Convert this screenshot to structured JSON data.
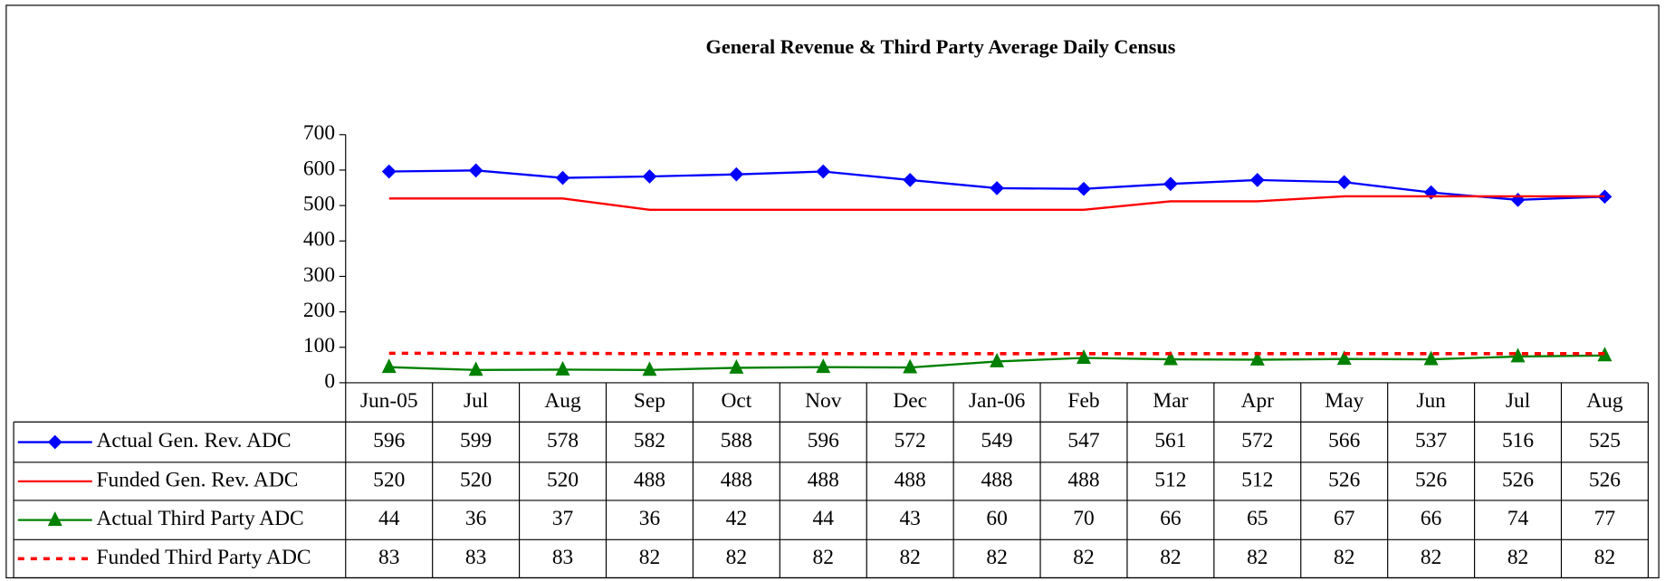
{
  "chart_data": {
    "type": "line",
    "title": "General Revenue & Third Party Average Daily Census",
    "categories": [
      "Jun-05",
      "Jul",
      "Aug",
      "Sep",
      "Oct",
      "Nov",
      "Dec",
      "Jan-06",
      "Feb",
      "Mar",
      "Apr",
      "May",
      "Jun",
      "Jul",
      "Aug"
    ],
    "ylim": [
      0,
      700
    ],
    "yticks": [
      0,
      100,
      200,
      300,
      400,
      500,
      600,
      700
    ],
    "series": [
      {
        "name": "Actual Gen. Rev. ADC",
        "color": "#0000ff",
        "marker": "diamond",
        "values": [
          596,
          599,
          578,
          582,
          588,
          596,
          572,
          549,
          547,
          561,
          572,
          566,
          537,
          516,
          525
        ]
      },
      {
        "name": "Funded Gen. Rev. ADC",
        "color": "#ff0000",
        "values": [
          520,
          520,
          520,
          488,
          488,
          488,
          488,
          488,
          488,
          512,
          512,
          526,
          526,
          526,
          526
        ]
      },
      {
        "name": "Actual Third Party ADC",
        "color": "#008000",
        "marker": "triangle",
        "values": [
          44,
          36,
          37,
          36,
          42,
          44,
          43,
          60,
          70,
          66,
          65,
          67,
          66,
          74,
          77
        ]
      },
      {
        "name": "Funded Third Party ADC",
        "color": "#ff0000",
        "dashed": true,
        "values": [
          83,
          83,
          83,
          82,
          82,
          82,
          82,
          82,
          82,
          82,
          82,
          82,
          82,
          82,
          82
        ]
      }
    ]
  }
}
